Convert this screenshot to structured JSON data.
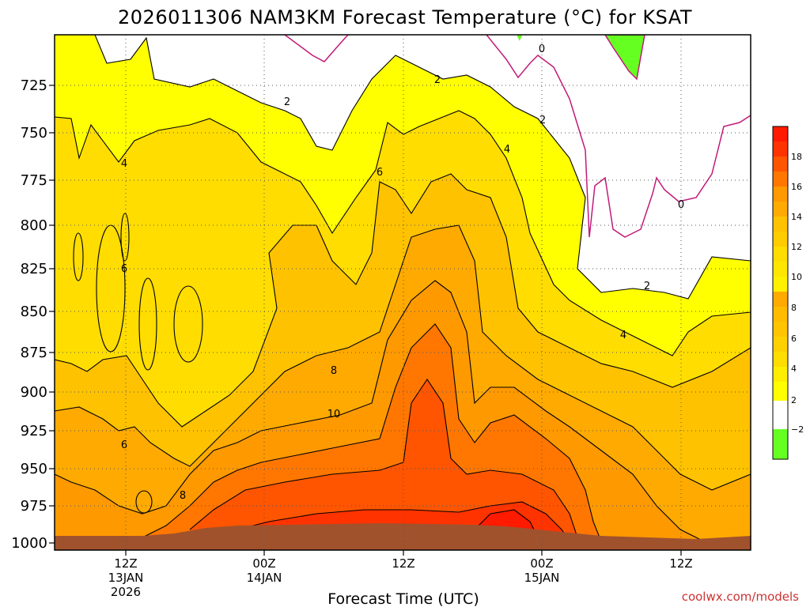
{
  "chart_data": {
    "type": "heatmap",
    "title": "2026011306 NAM3KM Forecast Temperature (°C) for KSAT",
    "xlabel": "Forecast Time (UTC)",
    "ylabel": "",
    "credit": "coolwx.com/models",
    "y_axis": {
      "ticks": [
        "725",
        "750",
        "775",
        "800",
        "825",
        "850",
        "875",
        "900",
        "925",
        "950",
        "975",
        "1000"
      ],
      "scale": "pressure (inverted)"
    },
    "x_axis": {
      "ticks": [
        {
          "line1": "12Z",
          "line2": "13JAN",
          "line3": "2026"
        },
        {
          "line1": "00Z",
          "line2": "14JAN",
          "line3": ""
        },
        {
          "line1": "12Z",
          "line2": "",
          "line3": ""
        },
        {
          "line1": "00Z",
          "line2": "15JAN",
          "line3": ""
        },
        {
          "line1": "12Z",
          "line2": "",
          "line3": ""
        }
      ]
    },
    "colorbar": {
      "labels": [
        "18",
        "16",
        "14",
        "12",
        "10",
        "8",
        "6",
        "4",
        "2",
        "−2"
      ],
      "bands": [
        {
          "value": 18,
          "color": "#ff1a00"
        },
        {
          "value": 16,
          "color": "#ff3300"
        },
        {
          "value": 14,
          "color": "#ff5500"
        },
        {
          "value": 12,
          "color": "#ff7700"
        },
        {
          "value": 10,
          "color": "#ff9900"
        },
        {
          "value": 8,
          "color": "#ffaa00"
        },
        {
          "value": 6,
          "color": "#ffc200"
        },
        {
          "value": 4,
          "color": "#ffdd00"
        },
        {
          "value": 2,
          "color": "#ffff00"
        },
        {
          "value": 0,
          "color": "#ffffff"
        },
        {
          "value": -2,
          "color": "#66ff22"
        }
      ]
    },
    "contour_labels": [
      "0",
      "2",
      "4",
      "6",
      "8",
      "10"
    ],
    "terrain_color": "#a0522d",
    "freezing_line_color": "#c21a78"
  }
}
